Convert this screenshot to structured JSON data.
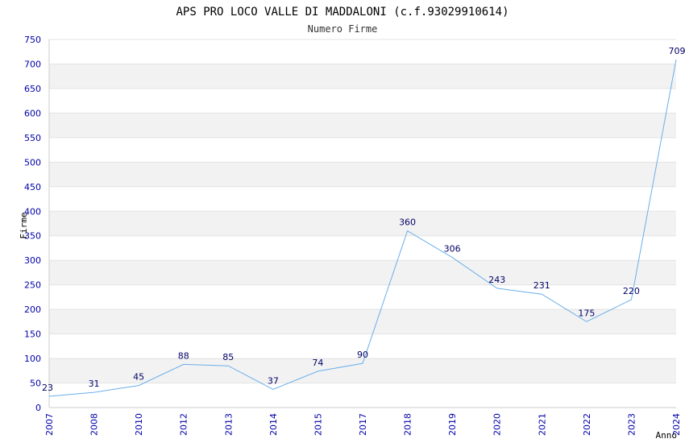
{
  "chart_data": {
    "type": "line",
    "title": "APS PRO LOCO VALLE DI MADDALONI (c.f.93029910614)",
    "subtitle": "Numero Firme",
    "xlabel": "Anno",
    "ylabel": "Firme",
    "ylim": [
      0,
      750
    ],
    "yticks": [
      0,
      50,
      100,
      150,
      200,
      250,
      300,
      350,
      400,
      450,
      500,
      550,
      600,
      650,
      700,
      750
    ],
    "grid": true,
    "categories": [
      "2007",
      "2008",
      "2010",
      "2012",
      "2013",
      "2014",
      "2015",
      "2017",
      "2018",
      "2019",
      "2020",
      "2021",
      "2022",
      "2023",
      "2024"
    ],
    "values": [
      23,
      31,
      45,
      88,
      85,
      37,
      74,
      90,
      360,
      306,
      243,
      231,
      175,
      220,
      709
    ],
    "line_color": "#6aaeea",
    "tick_color": "#0000aa",
    "band_color": "#f2f2f2"
  }
}
